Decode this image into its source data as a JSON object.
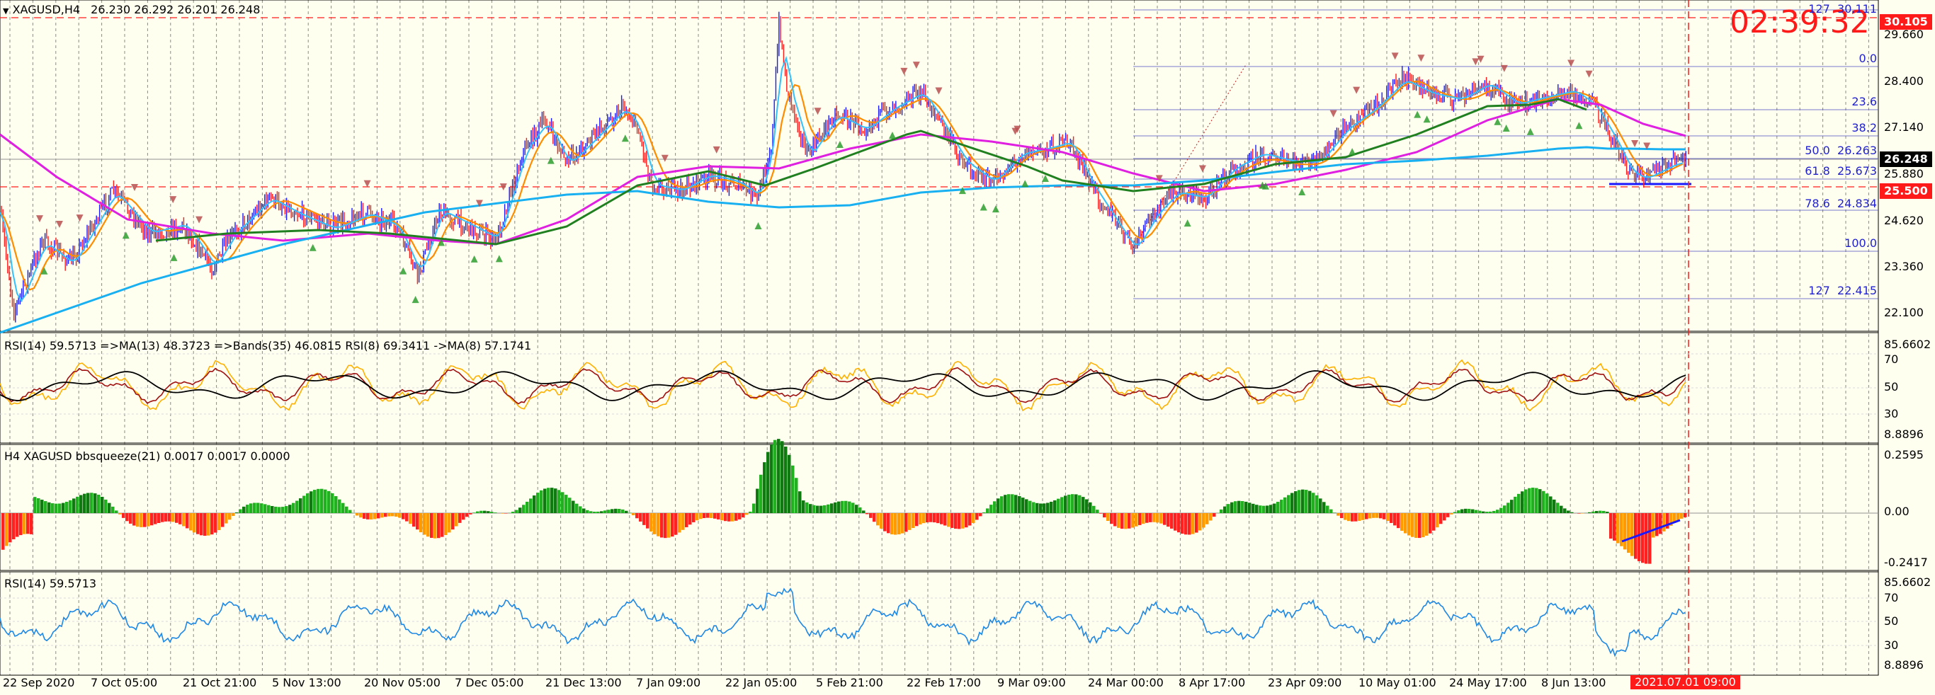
{
  "symbol_header": {
    "symbol": "XAGUSD,H4",
    "open": "26.230",
    "high": "26.292",
    "low": "26.201",
    "close": "26.248"
  },
  "countdown": "02:39:32",
  "price_axis": [
    "29.660",
    "28.400",
    "27.140",
    "25.880",
    "24.620",
    "23.360",
    "22.100"
  ],
  "price_tags": {
    "high_line": "30.105",
    "current": "26.248",
    "support": "25.500"
  },
  "fibonacci": [
    {
      "level": "127",
      "price": "30.111"
    },
    {
      "level": "0.0",
      "price": ""
    },
    {
      "level": "23.6",
      "price": ""
    },
    {
      "level": "38.2",
      "price": ""
    },
    {
      "level": "50.0",
      "price": "26.263"
    },
    {
      "level": "61.8",
      "price": "25.673"
    },
    {
      "level": "78.6",
      "price": "24.834"
    },
    {
      "level": "100.0",
      "price": ""
    },
    {
      "level": "127",
      "price": "22.415"
    }
  ],
  "rsi_panel": {
    "label": "RSI(14) 59.5713  =>MA(13) 48.3723  =>Bands(35) 46.0815  RSI(8) 69.3411  ->MA(8) 57.1741",
    "axis": [
      "85.6602",
      "70",
      "50",
      "30",
      "8.8896"
    ]
  },
  "squeeze_panel": {
    "label": "H4 XAGUSD bbsqueeze(21) 0.0017 0.0017 0.0000",
    "axis": [
      "0.2595",
      "0.00",
      "-0.2417"
    ]
  },
  "rsi2_panel": {
    "label": "RSI(14) 59.5713",
    "axis": [
      "85.6602",
      "70",
      "50",
      "30",
      "8.8896"
    ]
  },
  "time_axis": [
    "22 Sep 2020",
    "7 Oct 05:00",
    "21 Oct 21:00",
    "5 Nov 13:00",
    "20 Nov 05:00",
    "7 Dec 05:00",
    "21 Dec 13:00",
    "7 Jan 09:00",
    "22 Jan 05:00",
    "5 Feb 21:00",
    "22 Feb 17:00",
    "9 Mar 09:00",
    "24 Mar 00:00",
    "8 Apr 17:00",
    "23 Apr 09:00",
    "10 May 01:00",
    "24 May 17:00",
    "8 Jun 13:00"
  ],
  "current_time_tag": "2021.07.01 09:00",
  "colors": {
    "background": "#fffff0",
    "bull_candle": "#1a1aff",
    "bear_candle": "#ff1a1a",
    "ma_fast": "#ff8c00",
    "ma_slow_green": "#208020",
    "ma_magenta": "#e020e0",
    "ma_cyan": "#18b0f0",
    "fib_lines": "#4040c0",
    "squeeze_up": "#20b020",
    "squeeze_down": "#ff2020",
    "rsi_line": "#1e88e5"
  }
}
